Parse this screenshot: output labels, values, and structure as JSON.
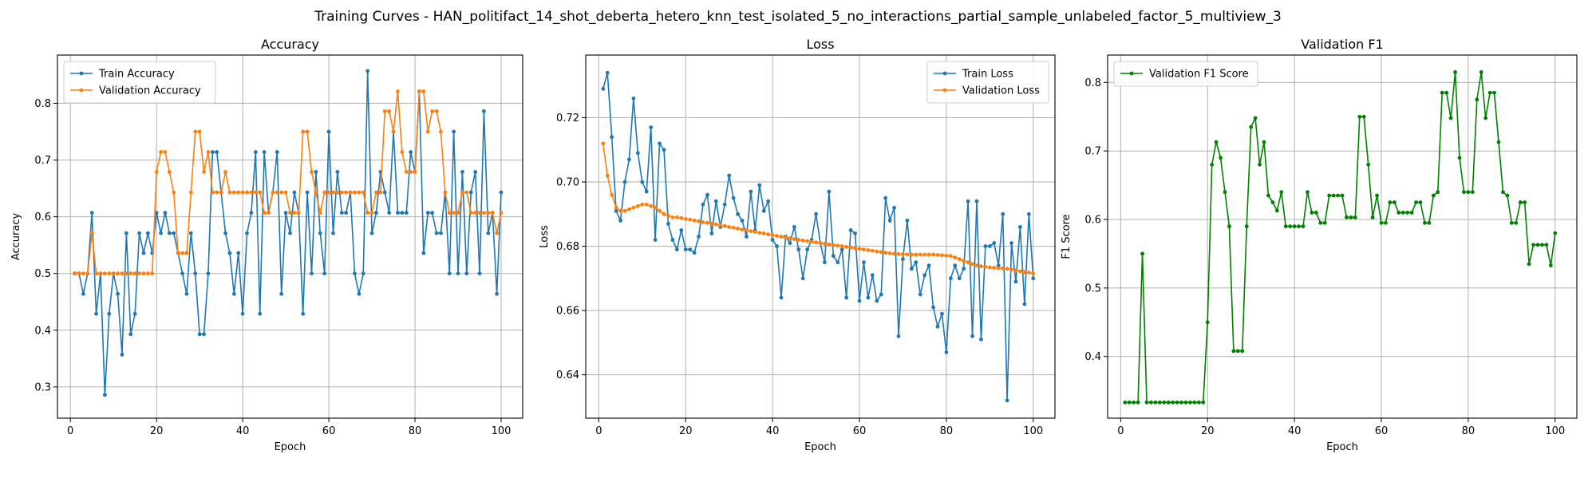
{
  "figure": {
    "suptitle": "Training Curves - HAN_politifact_14_shot_deberta_hetero_knn_test_isolated_5_no_interactions_partial_sample_unlabeled_factor_5_multiview_3"
  },
  "chart_data": [
    {
      "type": "line",
      "title": "Accuracy",
      "xlabel": "Epoch",
      "ylabel": "Accuracy",
      "xlim": [
        -3,
        105
      ],
      "ylim": [
        0.245,
        0.885
      ],
      "xticks": [
        0,
        20,
        40,
        60,
        80,
        100
      ],
      "yticks": [
        0.3,
        0.4,
        0.5,
        0.6,
        0.7,
        0.8
      ],
      "ytick_labels": [
        "0.3",
        "0.4",
        "0.5",
        "0.6",
        "0.7",
        "0.8"
      ],
      "grid": true,
      "legend_position": "top-left",
      "x": [
        1,
        2,
        3,
        4,
        5,
        6,
        7,
        8,
        9,
        10,
        11,
        12,
        13,
        14,
        15,
        16,
        17,
        18,
        19,
        20,
        21,
        22,
        23,
        24,
        25,
        26,
        27,
        28,
        29,
        30,
        31,
        32,
        33,
        34,
        35,
        36,
        37,
        38,
        39,
        40,
        41,
        42,
        43,
        44,
        45,
        46,
        47,
        48,
        49,
        50,
        51,
        52,
        53,
        54,
        55,
        56,
        57,
        58,
        59,
        60,
        61,
        62,
        63,
        64,
        65,
        66,
        67,
        68,
        69,
        70,
        71,
        72,
        73,
        74,
        75,
        76,
        77,
        78,
        79,
        80,
        81,
        82,
        83,
        84,
        85,
        86,
        87,
        88,
        89,
        90,
        91,
        92,
        93,
        94,
        95,
        96,
        97,
        98,
        99,
        100
      ],
      "series": [
        {
          "name": "Train Accuracy",
          "color": "#1f77b4",
          "values": [
            0.5,
            0.5,
            0.464,
            0.5,
            0.607,
            0.429,
            0.5,
            0.286,
            0.429,
            0.5,
            0.464,
            0.357,
            0.571,
            0.393,
            0.429,
            0.571,
            0.536,
            0.571,
            0.536,
            0.607,
            0.571,
            0.607,
            0.571,
            0.571,
            0.536,
            0.5,
            0.464,
            0.571,
            0.5,
            0.393,
            0.393,
            0.5,
            0.714,
            0.714,
            0.643,
            0.571,
            0.536,
            0.464,
            0.536,
            0.429,
            0.571,
            0.607,
            0.714,
            0.429,
            0.714,
            0.607,
            0.643,
            0.714,
            0.464,
            0.607,
            0.571,
            0.643,
            0.607,
            0.429,
            0.643,
            0.5,
            0.679,
            0.571,
            0.5,
            0.75,
            0.571,
            0.679,
            0.607,
            0.607,
            0.643,
            0.5,
            0.464,
            0.5,
            0.857,
            0.571,
            0.607,
            0.679,
            0.643,
            0.607,
            0.75,
            0.607,
            0.607,
            0.607,
            0.714,
            0.679,
            0.821,
            0.536,
            0.607,
            0.607,
            0.571,
            0.571,
            0.643,
            0.5,
            0.75,
            0.5,
            0.679,
            0.5,
            0.643,
            0.679,
            0.5,
            0.786,
            0.571,
            0.607,
            0.464,
            0.643
          ]
        },
        {
          "name": "Validation Accuracy",
          "color": "#ff7f0e",
          "values": [
            0.5,
            0.5,
            0.5,
            0.5,
            0.571,
            0.5,
            0.5,
            0.5,
            0.5,
            0.5,
            0.5,
            0.5,
            0.5,
            0.5,
            0.5,
            0.5,
            0.5,
            0.5,
            0.5,
            0.679,
            0.714,
            0.714,
            0.679,
            0.643,
            0.536,
            0.536,
            0.536,
            0.643,
            0.75,
            0.75,
            0.679,
            0.714,
            0.643,
            0.643,
            0.643,
            0.679,
            0.643,
            0.643,
            0.643,
            0.643,
            0.643,
            0.643,
            0.643,
            0.643,
            0.607,
            0.607,
            0.643,
            0.643,
            0.643,
            0.643,
            0.607,
            0.607,
            0.607,
            0.75,
            0.75,
            0.679,
            0.643,
            0.607,
            0.643,
            0.643,
            0.643,
            0.643,
            0.643,
            0.643,
            0.643,
            0.643,
            0.643,
            0.643,
            0.607,
            0.607,
            0.643,
            0.643,
            0.786,
            0.786,
            0.75,
            0.821,
            0.714,
            0.679,
            0.679,
            0.679,
            0.821,
            0.821,
            0.75,
            0.786,
            0.786,
            0.75,
            0.643,
            0.607,
            0.607,
            0.607,
            0.643,
            0.643,
            0.607,
            0.607,
            0.607,
            0.607,
            0.607,
            0.607,
            0.571,
            0.607
          ]
        }
      ]
    },
    {
      "type": "line",
      "title": "Loss",
      "xlabel": "Epoch",
      "ylabel": "Loss",
      "xlim": [
        -3,
        105
      ],
      "ylim": [
        0.6265,
        0.7395
      ],
      "xticks": [
        0,
        20,
        40,
        60,
        80,
        100
      ],
      "yticks": [
        0.64,
        0.66,
        0.68,
        0.7,
        0.72
      ],
      "ytick_labels": [
        "0.64",
        "0.66",
        "0.68",
        "0.70",
        "0.72"
      ],
      "grid": true,
      "legend_position": "top-right",
      "x": [
        1,
        2,
        3,
        4,
        5,
        6,
        7,
        8,
        9,
        10,
        11,
        12,
        13,
        14,
        15,
        16,
        17,
        18,
        19,
        20,
        21,
        22,
        23,
        24,
        25,
        26,
        27,
        28,
        29,
        30,
        31,
        32,
        33,
        34,
        35,
        36,
        37,
        38,
        39,
        40,
        41,
        42,
        43,
        44,
        45,
        46,
        47,
        48,
        49,
        50,
        51,
        52,
        53,
        54,
        55,
        56,
        57,
        58,
        59,
        60,
        61,
        62,
        63,
        64,
        65,
        66,
        67,
        68,
        69,
        70,
        71,
        72,
        73,
        74,
        75,
        76,
        77,
        78,
        79,
        80,
        81,
        82,
        83,
        84,
        85,
        86,
        87,
        88,
        89,
        90,
        91,
        92,
        93,
        94,
        95,
        96,
        97,
        98,
        99,
        100
      ],
      "series": [
        {
          "name": "Train Loss",
          "color": "#1f77b4",
          "values": [
            0.729,
            0.734,
            0.714,
            0.691,
            0.688,
            0.7,
            0.707,
            0.726,
            0.709,
            0.7,
            0.697,
            0.717,
            0.682,
            0.712,
            0.71,
            0.687,
            0.682,
            0.679,
            0.685,
            0.679,
            0.679,
            0.678,
            0.683,
            0.693,
            0.696,
            0.684,
            0.694,
            0.686,
            0.693,
            0.702,
            0.695,
            0.69,
            0.688,
            0.683,
            0.697,
            0.685,
            0.699,
            0.691,
            0.694,
            0.682,
            0.68,
            0.664,
            0.683,
            0.681,
            0.686,
            0.679,
            0.67,
            0.679,
            0.682,
            0.69,
            0.681,
            0.675,
            0.697,
            0.677,
            0.675,
            0.679,
            0.664,
            0.685,
            0.684,
            0.663,
            0.675,
            0.664,
            0.671,
            0.663,
            0.665,
            0.695,
            0.688,
            0.692,
            0.652,
            0.676,
            0.688,
            0.673,
            0.675,
            0.665,
            0.671,
            0.674,
            0.661,
            0.655,
            0.659,
            0.647,
            0.67,
            0.674,
            0.67,
            0.673,
            0.694,
            0.652,
            0.694,
            0.651,
            0.68,
            0.68,
            0.681,
            0.674,
            0.69,
            0.632,
            0.681,
            0.669,
            0.686,
            0.662,
            0.69,
            0.67
          ]
        },
        {
          "name": "Validation Loss",
          "color": "#ff7f0e",
          "values": [
            0.712,
            0.702,
            0.696,
            0.692,
            0.691,
            0.691,
            0.6915,
            0.692,
            0.6925,
            0.693,
            0.693,
            0.6925,
            0.692,
            0.691,
            0.69,
            0.6895,
            0.689,
            0.689,
            0.6888,
            0.6885,
            0.6883,
            0.688,
            0.6878,
            0.6875,
            0.6873,
            0.687,
            0.6868,
            0.6865,
            0.6863,
            0.686,
            0.6858,
            0.6855,
            0.6852,
            0.685,
            0.6847,
            0.6845,
            0.6842,
            0.684,
            0.6837,
            0.6835,
            0.6832,
            0.683,
            0.6827,
            0.6825,
            0.6822,
            0.682,
            0.6818,
            0.6816,
            0.6814,
            0.6812,
            0.681,
            0.6808,
            0.6806,
            0.6804,
            0.6802,
            0.68,
            0.6798,
            0.6796,
            0.6794,
            0.6792,
            0.679,
            0.6788,
            0.6786,
            0.6784,
            0.6782,
            0.678,
            0.6778,
            0.6777,
            0.6776,
            0.6775,
            0.6775,
            0.6774,
            0.6774,
            0.6774,
            0.6774,
            0.6774,
            0.6774,
            0.6773,
            0.6772,
            0.6771,
            0.677,
            0.6765,
            0.676,
            0.6755,
            0.675,
            0.6745,
            0.674,
            0.6738,
            0.6736,
            0.6734,
            0.6733,
            0.6732,
            0.6731,
            0.673,
            0.6728,
            0.6725,
            0.6722,
            0.672,
            0.6718,
            0.6715
          ]
        }
      ]
    },
    {
      "type": "line",
      "title": "Validation F1",
      "xlabel": "Epoch",
      "ylabel": "F1 Score",
      "xlim": [
        -3,
        105
      ],
      "ylim": [
        0.31,
        0.84
      ],
      "xticks": [
        0,
        20,
        40,
        60,
        80,
        100
      ],
      "yticks": [
        0.4,
        0.5,
        0.6,
        0.7,
        0.8
      ],
      "ytick_labels": [
        "0.4",
        "0.5",
        "0.6",
        "0.7",
        "0.8"
      ],
      "grid": true,
      "legend_position": "top-left",
      "x": [
        1,
        2,
        3,
        4,
        5,
        6,
        7,
        8,
        9,
        10,
        11,
        12,
        13,
        14,
        15,
        16,
        17,
        18,
        19,
        20,
        21,
        22,
        23,
        24,
        25,
        26,
        27,
        28,
        29,
        30,
        31,
        32,
        33,
        34,
        35,
        36,
        37,
        38,
        39,
        40,
        41,
        42,
        43,
        44,
        45,
        46,
        47,
        48,
        49,
        50,
        51,
        52,
        53,
        54,
        55,
        56,
        57,
        58,
        59,
        60,
        61,
        62,
        63,
        64,
        65,
        66,
        67,
        68,
        69,
        70,
        71,
        72,
        73,
        74,
        75,
        76,
        77,
        78,
        79,
        80,
        81,
        82,
        83,
        84,
        85,
        86,
        87,
        88,
        89,
        90,
        91,
        92,
        93,
        94,
        95,
        96,
        97,
        98,
        99,
        100
      ],
      "series": [
        {
          "name": "Validation F1 Score",
          "color": "#008000",
          "values": [
            0.333,
            0.333,
            0.333,
            0.333,
            0.55,
            0.333,
            0.333,
            0.333,
            0.333,
            0.333,
            0.333,
            0.333,
            0.333,
            0.333,
            0.333,
            0.333,
            0.333,
            0.333,
            0.333,
            0.45,
            0.68,
            0.713,
            0.69,
            0.64,
            0.59,
            0.408,
            0.408,
            0.408,
            0.59,
            0.735,
            0.748,
            0.68,
            0.713,
            0.635,
            0.625,
            0.613,
            0.64,
            0.59,
            0.59,
            0.59,
            0.59,
            0.59,
            0.64,
            0.61,
            0.61,
            0.595,
            0.595,
            0.635,
            0.635,
            0.635,
            0.635,
            0.603,
            0.603,
            0.603,
            0.75,
            0.75,
            0.68,
            0.603,
            0.635,
            0.595,
            0.595,
            0.625,
            0.625,
            0.61,
            0.61,
            0.61,
            0.61,
            0.625,
            0.625,
            0.595,
            0.595,
            0.635,
            0.64,
            0.785,
            0.785,
            0.748,
            0.815,
            0.69,
            0.64,
            0.64,
            0.64,
            0.775,
            0.815,
            0.748,
            0.785,
            0.785,
            0.713,
            0.64,
            0.635,
            0.595,
            0.595,
            0.625,
            0.625,
            0.535,
            0.563,
            0.563,
            0.563,
            0.563,
            0.533,
            0.58
          ]
        }
      ]
    }
  ]
}
